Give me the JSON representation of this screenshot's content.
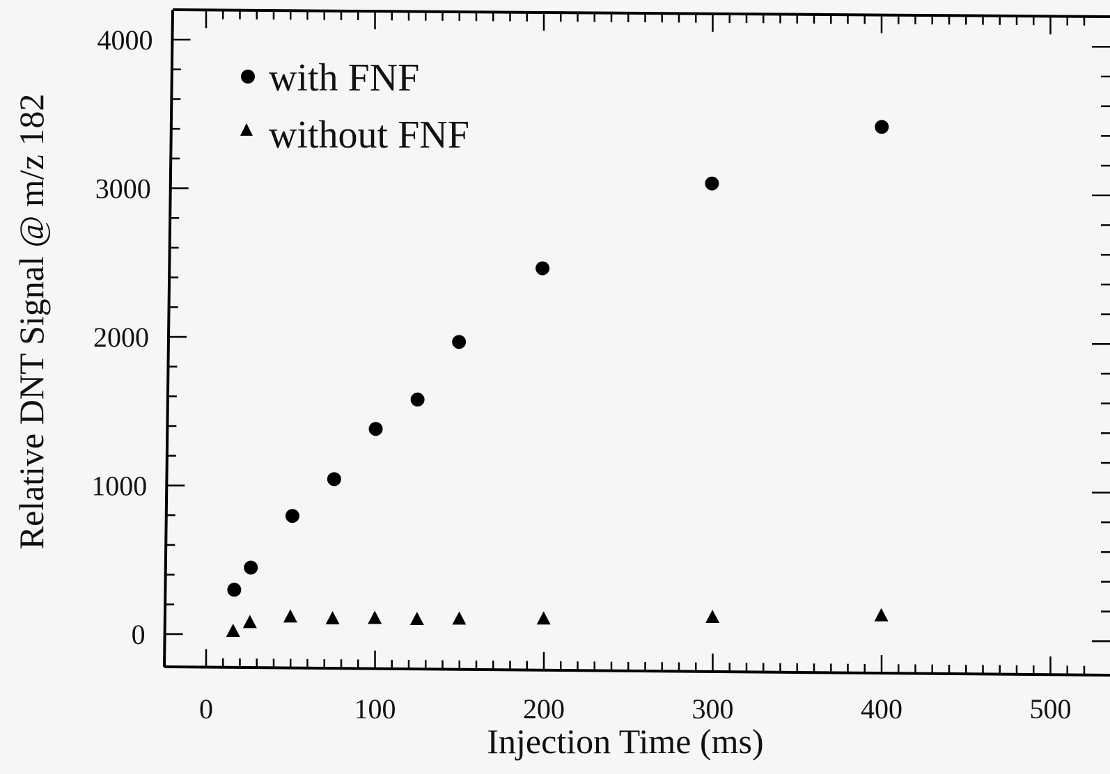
{
  "chart_data": {
    "type": "scatter",
    "xlabel": "Injection Time (ms)",
    "ylabel": "Relative DNT Signal @ m/z 182",
    "xlim": [
      -25,
      525
    ],
    "ylim": [
      -210,
      4210
    ],
    "x_ticks": [
      0,
      100,
      200,
      300,
      400,
      500
    ],
    "y_ticks": [
      0,
      1000,
      2000,
      3000,
      4000
    ],
    "x_ticks_text": [
      "0",
      "100",
      "200",
      "300",
      "400",
      "500"
    ],
    "y_ticks_text": [
      "0",
      "1000",
      "2000",
      "3000",
      "4000"
    ],
    "legend_position": "top-left",
    "grid": false,
    "series": [
      {
        "name": "with FNF",
        "marker": "circle",
        "color": "#000000",
        "x": [
          17,
          27,
          52,
          77,
          102,
          127,
          152,
          202,
          303,
          404
        ],
        "y": [
          300,
          450,
          800,
          1050,
          1390,
          1590,
          1980,
          2480,
          3060,
          3450
        ]
      },
      {
        "name": "without FNF",
        "marker": "triangle",
        "color": "#000000",
        "x": [
          16,
          26,
          50,
          75,
          100,
          125,
          150,
          200,
          300,
          400
        ],
        "y": [
          20,
          80,
          120,
          110,
          115,
          110,
          115,
          120,
          140,
          160
        ]
      }
    ]
  }
}
